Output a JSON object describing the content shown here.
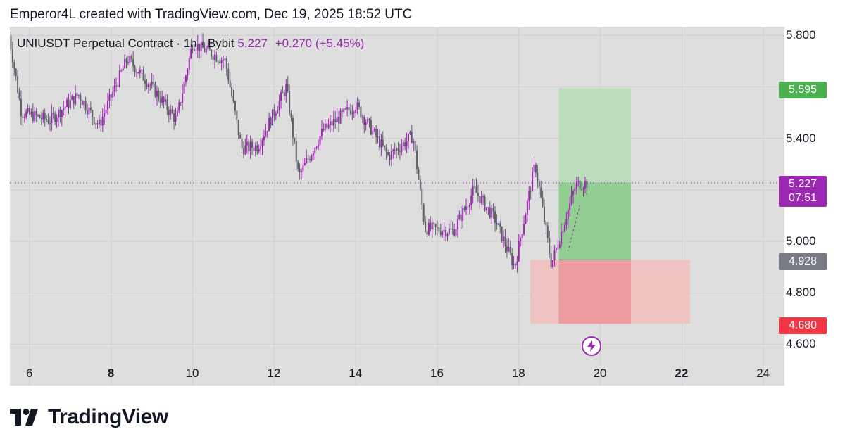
{
  "caption": "Emperor4L created with TradingView.com, Dec 19, 2025 18:52 UTC",
  "symbol": {
    "name": "UNIUSDT Perpetual Contract · 1h · Bybit",
    "price": "5.227",
    "change": "+0.270 (+5.45%)"
  },
  "price_axis": [
    "5.800",
    "5.400",
    "5.000",
    "4.800",
    "4.600"
  ],
  "time_axis": [
    {
      "label": "6",
      "bold": false
    },
    {
      "label": "8",
      "bold": true
    },
    {
      "label": "10",
      "bold": false
    },
    {
      "label": "12",
      "bold": false
    },
    {
      "label": "14",
      "bold": false
    },
    {
      "label": "16",
      "bold": false
    },
    {
      "label": "18",
      "bold": false
    },
    {
      "label": "20",
      "bold": false
    },
    {
      "label": "22",
      "bold": true
    },
    {
      "label": "24",
      "bold": false
    }
  ],
  "badges": {
    "target": "5.595",
    "current_price": "5.227",
    "countdown": "07:51",
    "entry": "4.928",
    "stop": "4.680"
  },
  "colors": {
    "up_candle": "#9c27b0",
    "down_candle": "#5d606b",
    "target_badge": "#4caf50",
    "stop_badge": "#f23645",
    "entry_badge": "#787b86",
    "profit_zone": "#81c784",
    "loss_zone": "#ef9a9a"
  },
  "icons": {
    "marker": "lightning-bolt-icon",
    "logo": "tradingview-logo-icon"
  },
  "footer": {
    "brand": "TradingView"
  },
  "chart_data": {
    "type": "candlestick",
    "symbol": "UNIUSDT",
    "interval": "1h",
    "ylim": [
      4.55,
      5.88
    ],
    "x_ticks": [
      "6",
      "8",
      "10",
      "12",
      "14",
      "16",
      "18",
      "20",
      "22",
      "24"
    ],
    "approx_close_path": [
      {
        "day": 5.5,
        "close": 5.8
      },
      {
        "day": 5.8,
        "close": 5.5
      },
      {
        "day": 6.5,
        "close": 5.47
      },
      {
        "day": 7.2,
        "close": 5.57
      },
      {
        "day": 7.7,
        "close": 5.45
      },
      {
        "day": 8.4,
        "close": 5.71
      },
      {
        "day": 9.0,
        "close": 5.6
      },
      {
        "day": 9.6,
        "close": 5.47
      },
      {
        "day": 10.0,
        "close": 5.77
      },
      {
        "day": 10.8,
        "close": 5.7
      },
      {
        "day": 11.2,
        "close": 5.36
      },
      {
        "day": 11.6,
        "close": 5.37
      },
      {
        "day": 12.3,
        "close": 5.6
      },
      {
        "day": 12.6,
        "close": 5.25
      },
      {
        "day": 13.2,
        "close": 5.43
      },
      {
        "day": 14.0,
        "close": 5.53
      },
      {
        "day": 14.8,
        "close": 5.33
      },
      {
        "day": 15.4,
        "close": 5.41
      },
      {
        "day": 15.7,
        "close": 5.05
      },
      {
        "day": 16.4,
        "close": 5.04
      },
      {
        "day": 16.9,
        "close": 5.2
      },
      {
        "day": 17.4,
        "close": 5.09
      },
      {
        "day": 17.9,
        "close": 4.9
      },
      {
        "day": 18.4,
        "close": 5.3
      },
      {
        "day": 18.8,
        "close": 4.91
      },
      {
        "day": 19.4,
        "close": 5.22
      },
      {
        "day": 19.7,
        "close": 5.227
      }
    ],
    "current_price": 5.227,
    "position": {
      "target": 5.595,
      "entry": 4.928,
      "stop": 4.68
    }
  }
}
